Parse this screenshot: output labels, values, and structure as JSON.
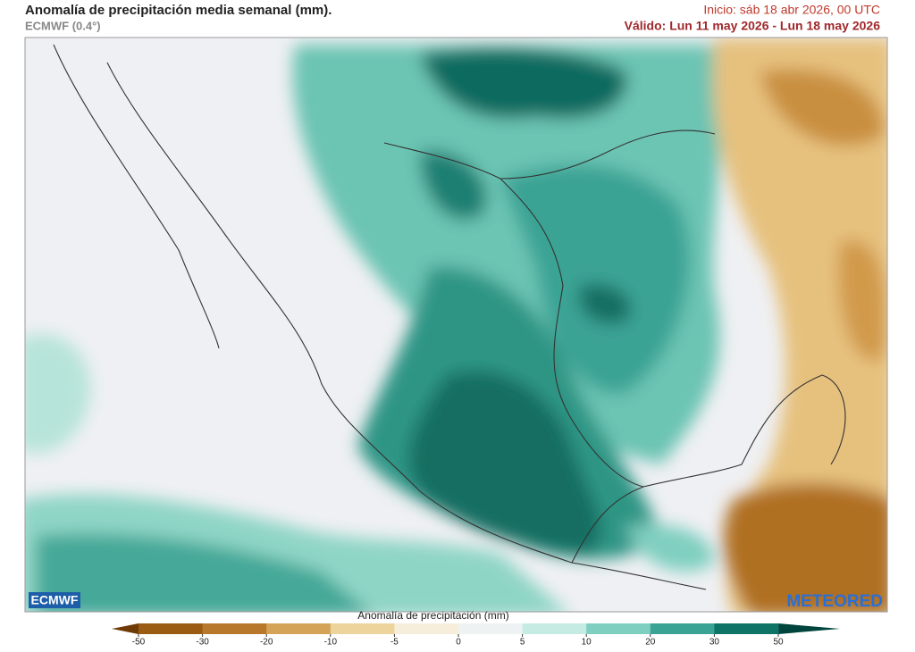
{
  "header": {
    "title": "Anomalía de precipitación media semanal (mm).",
    "model": "ECMWF (0.4°)",
    "init": "Inicio:  sáb 18 abr 2026, 00 UTC",
    "valid": "Válido: Lun 11 may 2026 - Lun 18 may 2026"
  },
  "logos": {
    "left": "ECMWF",
    "right": "METEORED"
  },
  "legend": {
    "label": "Anomalía de precipitación (mm)",
    "ticks": [
      "-50",
      "-30",
      "-20",
      "-10",
      "-5",
      "0",
      "5",
      "10",
      "20",
      "30",
      "50"
    ],
    "colors": [
      "#9a5b13",
      "#b8782b",
      "#d4a358",
      "#ecd49c",
      "#f6eedb",
      "#eef2f2",
      "#c5ebe3",
      "#7fcfc0",
      "#3aa394",
      "#0f7468"
    ],
    "low_color": "#6e3a06",
    "high_color": "#00453d"
  }
}
